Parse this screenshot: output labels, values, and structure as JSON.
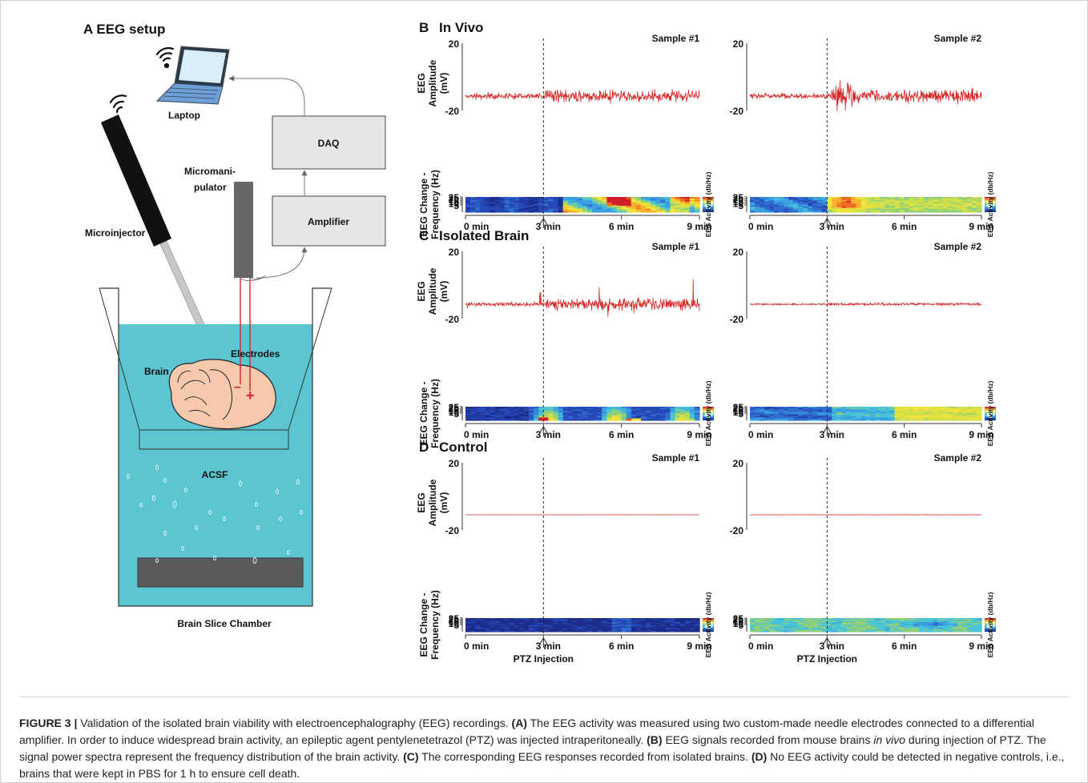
{
  "setup": {
    "title": "A  EEG setup",
    "labels": {
      "laptop": "Laptop",
      "daq": "DAQ",
      "micromanipulator_1": "Micromani-",
      "micromanipulator_2": "pulator",
      "amplifier": "Amplifier",
      "microinjector": "Microinjector",
      "brain": "Brain",
      "electrodes": "Electrodes",
      "acsf": "ACSF",
      "chamber": "Brain Slice Chamber"
    },
    "colors": {
      "bath": "#5bc6d1",
      "brain": "#f6c9ad",
      "electrode": "#d8232a",
      "box": "#e6e6e6"
    }
  },
  "common": {
    "eeg_axis_1": "EEG",
    "eeg_axis_2": "Amplitude",
    "eeg_axis_3": "(mV)",
    "eeg_ticks": [
      "20",
      "-20"
    ],
    "spec_axis_1": "EEG Change -",
    "spec_axis_2": "Frequency (Hz)",
    "freq_ticks": [
      "25",
      "20",
      "15",
      "10",
      "5"
    ],
    "time_ticks": [
      "0 min",
      "3 min",
      "6 min",
      "9 min"
    ],
    "colorbar_label": "EEG Activity (db/Hz)",
    "colorbar_ticks": [
      "10",
      "0"
    ],
    "injection_label": "PTZ Injection",
    "sample_labels": [
      "Sample #1",
      "Sample #2"
    ],
    "trace_color": "#d42a2a"
  },
  "panels": [
    {
      "letter": "B",
      "title": "In Vivo"
    },
    {
      "letter": "C",
      "title": "Isolated Brain"
    },
    {
      "letter": "D",
      "title": "Control"
    }
  ],
  "caption": {
    "figure_label": "FIGURE 3 |",
    "intro": " Validation of the isolated brain viability with electroencephalography (EEG) recordings. ",
    "a_label": "(A)",
    "a_text": " The EEG activity was measured using two custom-made needle electrodes connected to a differential amplifier. In order to induce widespread brain activity, an epileptic agent pentylenetetrazol (PTZ) was injected intraperitoneally. ",
    "b_label": "(B)",
    "b_text_1": " EEG signals recorded from mouse brains ",
    "b_italic": "in vivo",
    "b_text_2": " during injection of PTZ. The signal power spectra represent the frequency distribution of the brain activity. ",
    "c_label": "(C)",
    "c_text": " The corresponding EEG responses recorded from isolated brains. ",
    "d_label": "(D)",
    "d_text": " No EEG activity could be detected in negative controls, i.e., brains that were kept in PBS for 1 h to ensure cell death."
  }
}
